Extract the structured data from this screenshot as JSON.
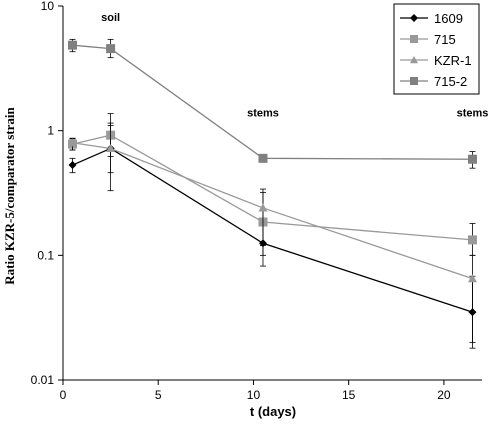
{
  "chart_data": {
    "type": "line",
    "xlabel": "t (days)",
    "ylabel": "Ratio KZR-5/comparator strain",
    "xlim": [
      0,
      22
    ],
    "ylim": [
      0.01,
      10
    ],
    "yscale": "log",
    "xticks": [
      0,
      5,
      10,
      15,
      20
    ],
    "yticks": [
      0.01,
      0.1,
      1,
      10
    ],
    "ytick_labels": [
      "0.01",
      "0.1",
      "1",
      "10"
    ],
    "grid": false,
    "legend_position": "top-right",
    "annotations": [
      {
        "text": "soil",
        "x": 2.5,
        "y": 7.6
      },
      {
        "text": "stems",
        "x": 10.5,
        "y": 1.3
      },
      {
        "text": "stems",
        "x": 21.5,
        "y": 1.3
      }
    ],
    "series": [
      {
        "name": "1609",
        "color": "#000000",
        "marker": "diamond",
        "x": [
          0.5,
          2.5,
          10.5,
          21.5
        ],
        "y": [
          0.53,
          0.72,
          0.125,
          0.035
        ],
        "err_low": [
          0.46,
          0.46,
          0.082,
          0.018
        ],
        "err_high": [
          0.6,
          1.1,
          0.19,
          0.068
        ]
      },
      {
        "name": "715",
        "color": "#999999",
        "marker": "square",
        "x": [
          0.5,
          2.5,
          10.5,
          21.5
        ],
        "y": [
          0.78,
          0.92,
          0.185,
          0.133
        ],
        "err_low": [
          0.7,
          0.62,
          0.1,
          0.1
        ],
        "err_high": [
          0.86,
          1.37,
          0.34,
          0.18
        ]
      },
      {
        "name": "KZR-1",
        "color": "#999999",
        "marker": "triangle",
        "x": [
          0.5,
          2.5,
          10.5,
          21.5
        ],
        "y": [
          0.8,
          0.72,
          0.24,
          0.065
        ],
        "err_low": [
          0.7,
          0.33,
          0.12,
          0.02
        ],
        "err_high": [
          0.87,
          1.15,
          0.32,
          0.1
        ]
      },
      {
        "name": "715-2",
        "color": "#808080",
        "marker": "square",
        "x": [
          0.5,
          2.5,
          10.5,
          21.5
        ],
        "y": [
          4.85,
          4.55,
          0.6,
          0.59
        ],
        "err_low": [
          4.3,
          3.85,
          0.6,
          0.5
        ],
        "err_high": [
          5.4,
          5.4,
          0.6,
          0.68
        ]
      }
    ]
  }
}
